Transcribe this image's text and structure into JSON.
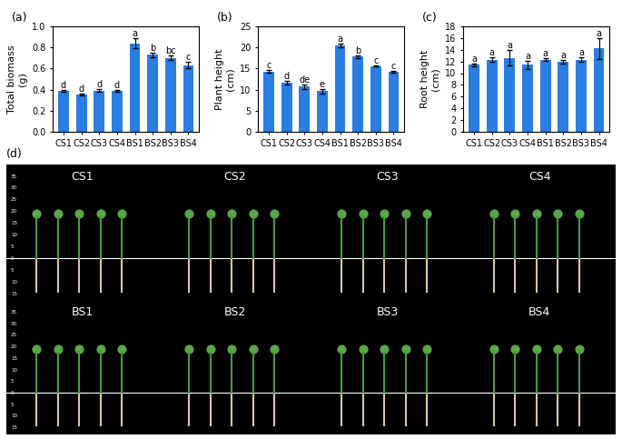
{
  "chart_data": [
    {
      "type": "bar",
      "label": "(a)",
      "y_label": "Total biomass\n(g)",
      "categories": [
        "CS1",
        "CS2",
        "CS3",
        "CS4",
        "BS1",
        "BS2",
        "BS3",
        "BS4"
      ],
      "values": [
        0.39,
        0.35,
        0.39,
        0.385,
        0.84,
        0.73,
        0.7,
        0.63
      ],
      "errors": [
        0.01,
        0.01,
        0.015,
        0.01,
        0.05,
        0.02,
        0.02,
        0.03
      ],
      "significance_labels": [
        "d",
        "d",
        "d",
        "d",
        "a",
        "b",
        "bc",
        "c"
      ],
      "color": "#2a7de1",
      "ylim": [
        0,
        1.0
      ],
      "yticks": [
        {
          "value": 0,
          "label": "0.0"
        },
        {
          "value": 0.2,
          "label": "0.2"
        },
        {
          "value": 0.4,
          "label": "0.4"
        },
        {
          "value": 0.6,
          "label": "0.6"
        },
        {
          "value": 0.8,
          "label": "0.8"
        },
        {
          "value": 1.0,
          "label": "1.0"
        }
      ],
      "grid": false
    },
    {
      "type": "bar",
      "label": "(b)",
      "y_label": "Plant height\n(cm)",
      "categories": [
        "CS1",
        "CS2",
        "CS3",
        "CS4",
        "BS1",
        "BS2",
        "BS3",
        "BS4"
      ],
      "values": [
        14.3,
        11.7,
        10.7,
        9.6,
        20.5,
        17.8,
        15.6,
        14.2
      ],
      "errors": [
        0.4,
        0.4,
        0.5,
        0.5,
        0.4,
        0.3,
        0.2,
        0.3
      ],
      "significance_labels": [
        "c",
        "d",
        "de",
        "e",
        "a",
        "b",
        "c",
        "c"
      ],
      "color": "#2a7de1",
      "ylim": [
        0,
        25
      ],
      "yticks": [
        0,
        5,
        10,
        15,
        20,
        25
      ],
      "grid": false
    },
    {
      "type": "bar",
      "label": "(c)",
      "y_label": "Root height\n(cm)",
      "categories": [
        "CS1",
        "CS2",
        "CS3",
        "CS4",
        "BS1",
        "BS2",
        "BS3",
        "BS4"
      ],
      "values": [
        11.4,
        12.3,
        12.6,
        11.4,
        12.3,
        11.9,
        12.3,
        14.2
      ],
      "errors": [
        0.3,
        0.4,
        1.3,
        0.7,
        0.2,
        0.3,
        0.4,
        1.8
      ],
      "significance_labels": [
        "a",
        "a",
        "a",
        "a",
        "a",
        "a",
        "a",
        "a"
      ],
      "color": "#2a7de1",
      "ylim": [
        0,
        18
      ],
      "yticks": [
        0,
        2,
        4,
        6,
        8,
        10,
        12,
        14,
        16,
        18
      ],
      "grid": false
    }
  ],
  "photo": {
    "label": "(d)",
    "rows": [
      [
        "CS1",
        "CS2",
        "CS3",
        "CS4"
      ],
      [
        "BS1",
        "BS2",
        "BS3",
        "BS4"
      ]
    ],
    "scale": [
      {
        "value": 35,
        "label": "35"
      },
      {
        "value": 30,
        "label": "30"
      },
      {
        "value": 25,
        "label": "25"
      },
      {
        "value": 20,
        "label": "20"
      },
      {
        "value": 15,
        "label": "15"
      },
      {
        "value": 10,
        "label": "10"
      },
      {
        "value": 5,
        "label": "5"
      },
      {
        "value": 0,
        "label": "0"
      },
      {
        "value": -5,
        "label": "5"
      },
      {
        "value": -10,
        "label": "10"
      },
      {
        "value": -15,
        "label": "15"
      }
    ]
  }
}
